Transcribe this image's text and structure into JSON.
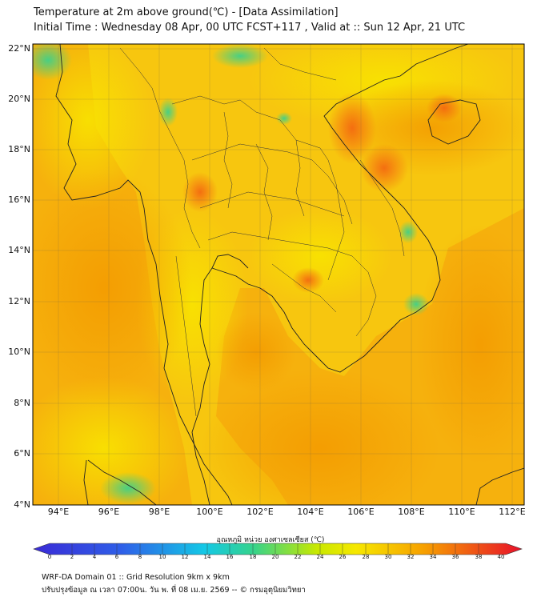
{
  "title": {
    "line1": "Temperature at 2m above ground(℃) - [Data Assimilation]",
    "line2": "Initial Time : Wednesday 08 Apr, 00 UTC FCST+117 , Valid at :: Sun 12 Apr, 21 UTC"
  },
  "lat_labels": [
    "22°N",
    "20°N",
    "18°N",
    "16°N",
    "14°N",
    "12°N",
    "10°N",
    "8°N",
    "6°N",
    "4°N"
  ],
  "lon_labels": [
    "94°E",
    "96°E",
    "98°E",
    "100°E",
    "102°E",
    "104°E",
    "106°E",
    "108°E",
    "110°E",
    "112°E"
  ],
  "colorbar": {
    "title": "อุณหภูมิ หน่วย องศาเซลเซียส (℃)",
    "ticks": [
      "0",
      "2",
      "4",
      "6",
      "8",
      "10",
      "12",
      "14",
      "16",
      "18",
      "20",
      "22",
      "24",
      "26",
      "28",
      "30",
      "32",
      "34",
      "36",
      "38",
      "40"
    ],
    "colors": {
      "cold": "#3a2bd6",
      "cyan": "#14c8e6",
      "green": "#35d38c",
      "yellow": "#f6e800",
      "orange": "#f7a000",
      "red": "#e8102a"
    }
  },
  "footer": {
    "line1": "WRF-DA Domain 01 :: Grid Resolution 9km x 9km",
    "line2": "ปรับปรุงข้อมูล ณ เวลา 07:00น. วัน พ. ที่ 08 เม.ย. 2569 -- © กรมอุตุนิยมวิทยา"
  }
}
